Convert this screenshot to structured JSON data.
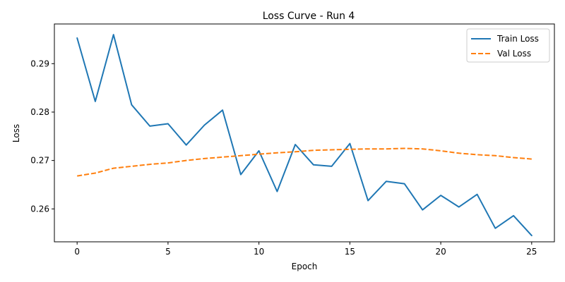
{
  "chart_data": {
    "type": "line",
    "title": "Loss Curve - Run 4",
    "xlabel": "Epoch",
    "ylabel": "Loss",
    "xlim": [
      -1.25,
      26.25
    ],
    "ylim": [
      0.2532,
      0.2982
    ],
    "xticks": [
      0,
      5,
      10,
      15,
      20,
      25
    ],
    "yticks": [
      0.26,
      0.27,
      0.28,
      0.29
    ],
    "legend_position": "top-right",
    "grid": false,
    "x": [
      0,
      1,
      2,
      3,
      4,
      5,
      6,
      7,
      8,
      9,
      10,
      11,
      12,
      13,
      14,
      15,
      16,
      17,
      18,
      19,
      20,
      21,
      22,
      23,
      24,
      25
    ],
    "series": [
      {
        "name": "Train Loss",
        "color": "#1f77b4",
        "style": "solid",
        "values": [
          0.2953,
          0.2822,
          0.296,
          0.2815,
          0.2771,
          0.2776,
          0.2732,
          0.2773,
          0.2804,
          0.2671,
          0.272,
          0.2636,
          0.2733,
          0.2691,
          0.2688,
          0.2735,
          0.2617,
          0.2657,
          0.2652,
          0.2598,
          0.2628,
          0.2604,
          0.263,
          0.256,
          0.2586,
          0.2545
        ]
      },
      {
        "name": "Val Loss",
        "color": "#ff7f0e",
        "style": "dashed",
        "values": [
          0.2668,
          0.2674,
          0.2684,
          0.2688,
          0.2692,
          0.2695,
          0.27,
          0.2704,
          0.2707,
          0.271,
          0.2713,
          0.2716,
          0.2718,
          0.2721,
          0.2722,
          0.2723,
          0.2724,
          0.2724,
          0.2725,
          0.2724,
          0.272,
          0.2715,
          0.2712,
          0.271,
          0.2706,
          0.2703
        ]
      }
    ]
  }
}
